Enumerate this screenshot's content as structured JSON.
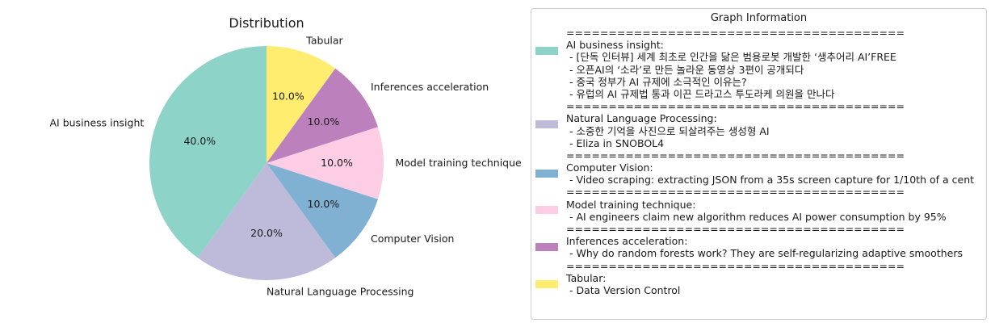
{
  "chart_data": {
    "type": "pie",
    "title": "Distribution",
    "slices": [
      {
        "label": "Tabular",
        "value": 10.0,
        "pct_text": "10.0%",
        "color": "#ffed6f"
      },
      {
        "label": "Inferences acceleration",
        "value": 10.0,
        "pct_text": "10.0%",
        "color": "#bc80bd"
      },
      {
        "label": "Model training technique",
        "value": 10.0,
        "pct_text": "10.0%",
        "color": "#fccde5"
      },
      {
        "label": "Computer Vision",
        "value": 10.0,
        "pct_text": "10.0%",
        "color": "#80b1d3"
      },
      {
        "label": "Natural Language Processing",
        "value": 20.0,
        "pct_text": "20.0%",
        "color": "#bebada"
      },
      {
        "label": "AI business insight",
        "value": 40.0,
        "pct_text": "40.0%",
        "color": "#8dd3c7"
      }
    ]
  },
  "legend": {
    "title": "Graph Information",
    "separator": "========================================",
    "groups": [
      {
        "name": "AI business insight:",
        "color": "#8dd3c7",
        "items": [
          " - [단독 인터뷰] 세계 최초로 인간을 닮은 범용로봇 개발한 ‘생추어리 AI’FREE",
          " - 오픈AI의 ‘소라’로 만든 놀라운 동영상 3편이 공개되다",
          " - 중국 정부가 AI 규제에 소극적인 이유는?",
          " - 유럽의 AI 규제법 통과 이끈 드라고스 투도라케 의원을 만나다"
        ]
      },
      {
        "name": "Natural Language Processing:",
        "color": "#bebada",
        "items": [
          " - 소중한 기억을 사진으로 되살려주는 생성형 AI",
          " - Eliza in SNOBOL4"
        ]
      },
      {
        "name": "Computer Vision:",
        "color": "#80b1d3",
        "items": [
          " - Video scraping: extracting JSON from a 35s screen capture for 1/10th of a cent"
        ]
      },
      {
        "name": "Model training technique:",
        "color": "#fccde5",
        "items": [
          " - AI engineers claim new algorithm reduces AI power consumption by 95%"
        ]
      },
      {
        "name": "Inferences acceleration:",
        "color": "#bc80bd",
        "items": [
          " - Why do random forests work? They are self-regularizing adaptive smoothers"
        ]
      },
      {
        "name": "Tabular:",
        "color": "#ffed6f",
        "items": [
          " - Data Version Control"
        ]
      }
    ]
  }
}
